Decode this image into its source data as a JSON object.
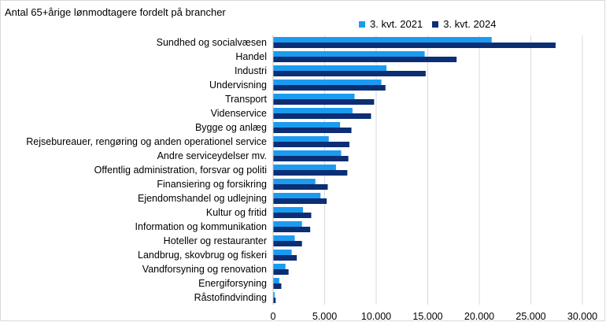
{
  "chart_data": {
    "type": "bar",
    "orientation": "horizontal",
    "title": "Antal 65+årige lønmodtagere fordelt på brancher",
    "xlabel": "",
    "ylabel": "",
    "xlim": [
      0,
      30000
    ],
    "xticks": [
      0,
      5000,
      10000,
      15000,
      20000,
      25000,
      30000
    ],
    "xtick_labels": [
      "0",
      "5.000",
      "10.000",
      "15.000",
      "20.000",
      "25.000",
      "30.000"
    ],
    "grid": "vertical",
    "legend_position": "top-right",
    "categories": [
      "Sundhed og socialvæsen",
      "Handel",
      "Industri",
      "Undervisning",
      "Transport",
      "Videnservice",
      "Bygge og anlæg",
      "Rejsebureauer, rengøring og anden operationel service",
      "Andre serviceydelser mv.",
      "Offentlig administration, forsvar og politi",
      "Finansiering og forsikring",
      "Ejendomshandel og udlejning",
      "Kultur og fritid",
      "Information og kommunikation",
      "Hoteller og restauranter",
      "Landbrug, skovbrug og fiskeri",
      "Vandforsyning og renovation",
      "Energiforsyning",
      "Råstofindvinding"
    ],
    "series": [
      {
        "name": "3. kvt. 2021",
        "color": "#1b9bf0",
        "values": [
          21200,
          14700,
          11000,
          10500,
          7900,
          7700,
          6500,
          5400,
          6600,
          6100,
          4100,
          4600,
          2900,
          2800,
          2100,
          1800,
          1200,
          600,
          150
        ]
      },
      {
        "name": "3. kvt. 2024",
        "color": "#0b2e74",
        "values": [
          27400,
          17800,
          14800,
          10900,
          9800,
          9500,
          7600,
          7400,
          7300,
          7200,
          5300,
          5200,
          3700,
          3600,
          2800,
          2300,
          1500,
          800,
          250
        ]
      }
    ]
  }
}
